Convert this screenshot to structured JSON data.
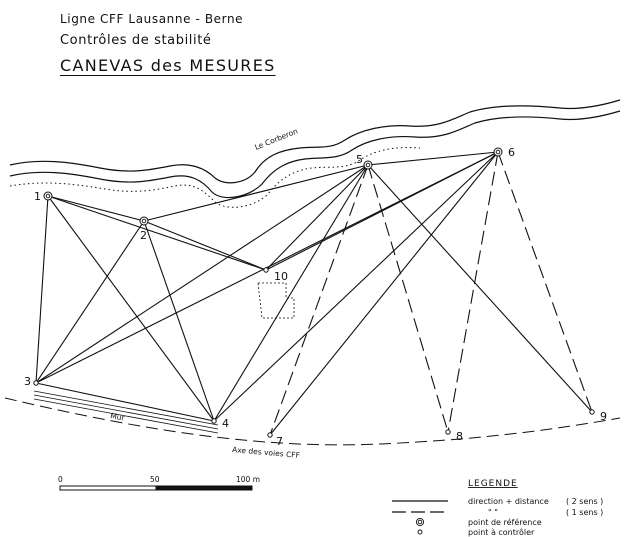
{
  "header": {
    "line": "Ligne  CFF  Lausanne - Berne",
    "subtitle": "Contrôles  de  stabilité",
    "title": "CANEVAS  des  MESURES"
  },
  "river_label": "Le  Corberon",
  "wall_label": "Mur",
  "axis_label": "Axe  des  voies  CFF",
  "points": [
    {
      "id": "1",
      "label": "1",
      "kind": "reference"
    },
    {
      "id": "2",
      "label": "2",
      "kind": "reference"
    },
    {
      "id": "3",
      "label": "3",
      "kind": "control"
    },
    {
      "id": "4",
      "label": "4",
      "kind": "control"
    },
    {
      "id": "5",
      "label": "5",
      "kind": "reference"
    },
    {
      "id": "6",
      "label": "6",
      "kind": "reference"
    },
    {
      "id": "7",
      "label": "7",
      "kind": "control"
    },
    {
      "id": "8",
      "label": "8",
      "kind": "control"
    },
    {
      "id": "9",
      "label": "9",
      "kind": "control"
    },
    {
      "id": "10",
      "label": "10",
      "kind": "control"
    }
  ],
  "connections": [
    {
      "from": "1",
      "to": "2",
      "type": "two-way"
    },
    {
      "from": "1",
      "to": "3",
      "type": "two-way"
    },
    {
      "from": "1",
      "to": "4",
      "type": "two-way"
    },
    {
      "from": "1",
      "to": "10",
      "type": "two-way"
    },
    {
      "from": "2",
      "to": "3",
      "type": "two-way"
    },
    {
      "from": "2",
      "to": "4",
      "type": "two-way"
    },
    {
      "from": "2",
      "to": "5",
      "type": "two-way"
    },
    {
      "from": "2",
      "to": "10",
      "type": "two-way"
    },
    {
      "from": "3",
      "to": "4",
      "type": "two-way"
    },
    {
      "from": "3",
      "to": "5",
      "type": "two-way"
    },
    {
      "from": "3",
      "to": "6",
      "type": "two-way"
    },
    {
      "from": "4",
      "to": "5",
      "type": "two-way"
    },
    {
      "from": "4",
      "to": "6",
      "type": "two-way"
    },
    {
      "from": "5",
      "to": "6",
      "type": "two-way"
    },
    {
      "from": "5",
      "to": "10",
      "type": "two-way"
    },
    {
      "from": "6",
      "to": "10",
      "type": "two-way"
    },
    {
      "from": "5",
      "to": "9",
      "type": "two-way"
    },
    {
      "from": "6",
      "to": "7",
      "type": "two-way"
    },
    {
      "from": "5",
      "to": "7",
      "type": "one-way"
    },
    {
      "from": "5",
      "to": "8",
      "type": "one-way"
    },
    {
      "from": "6",
      "to": "8",
      "type": "one-way"
    },
    {
      "from": "6",
      "to": "9",
      "type": "one-way"
    }
  ],
  "scale": {
    "labels": [
      "0",
      "50",
      "100 m"
    ]
  },
  "legend": {
    "title": "LEGENDE",
    "items": [
      {
        "style": "solid",
        "label": "direction + distance",
        "note": "( 2 sens )"
      },
      {
        "style": "dashed",
        "label": "\"        \"",
        "note": "( 1 sens )"
      },
      {
        "style": "reference",
        "label": "point  de  référence",
        "note": ""
      },
      {
        "style": "control",
        "label": "point  à  contrôler",
        "note": ""
      }
    ]
  },
  "colors": {
    "ink": "#111111",
    "paper": "#ffffff"
  }
}
